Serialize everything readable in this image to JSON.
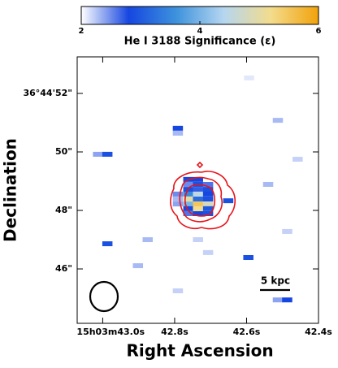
{
  "chart_data": {
    "type": "heatmap",
    "colorbar_label": "He I 3188 Significance (ε)",
    "clim": [
      2,
      6
    ],
    "cticks": [
      2,
      4,
      6
    ],
    "colormap": [
      "#ffffff",
      "#1646e0",
      "#3d92dc",
      "#b5d6f0",
      "#f3dc8c",
      "#f2a20a"
    ],
    "xlabel": "Right Ascension",
    "ylabel": "Declination",
    "xlim": [
      43.071,
      42.4
    ],
    "ylim": [
      44.14,
      53.25
    ],
    "xticks": [
      {
        "value": 43.0,
        "label": "15h03m43.0s"
      },
      {
        "value": 42.8,
        "label": "42.8s"
      },
      {
        "value": 42.6,
        "label": "42.6s"
      },
      {
        "value": 42.4,
        "label": "42.4s"
      }
    ],
    "yticks": [
      {
        "value": 52,
        "label": "36°44'52\""
      },
      {
        "value": 50,
        "label": "50\""
      },
      {
        "value": 48,
        "label": "48\""
      },
      {
        "value": 46,
        "label": "46\""
      }
    ],
    "scale_label": "5 kpc",
    "x": [
      42.593,
      42.791,
      42.791,
      43.013,
      42.987,
      42.513,
      42.458,
      42.54,
      42.987,
      42.875,
      42.902,
      42.735,
      42.707,
      42.595,
      42.487,
      42.791,
      42.513,
      42.487,
      42.651,
      42.762,
      42.735,
      42.762,
      42.735,
      42.707,
      42.762,
      42.735,
      42.707,
      42.791,
      42.762,
      42.735,
      42.707,
      42.791,
      42.762,
      42.735,
      42.707,
      42.791,
      42.762,
      42.735,
      42.707,
      42.762,
      42.735,
      42.707,
      42.762,
      42.735,
      42.707
    ],
    "y": [
      52.53,
      50.81,
      50.64,
      49.92,
      49.92,
      51.08,
      49.75,
      48.89,
      46.86,
      47.0,
      46.11,
      47.0,
      46.56,
      46.39,
      47.28,
      45.25,
      44.94,
      44.94,
      48.33,
      49.06,
      49.06,
      48.89,
      48.89,
      48.89,
      48.72,
      48.72,
      48.72,
      48.56,
      48.56,
      48.56,
      48.56,
      48.39,
      48.39,
      48.39,
      48.39,
      48.22,
      48.22,
      48.22,
      48.22,
      48.06,
      48.06,
      48.06,
      47.89,
      47.89,
      47.89
    ],
    "values": [
      2.1,
      2.8,
      2.3,
      2.4,
      2.9,
      2.3,
      2.2,
      2.3,
      2.9,
      2.3,
      2.3,
      2.2,
      2.2,
      2.9,
      2.2,
      2.2,
      2.4,
      2.8,
      2.9,
      2.8,
      2.8,
      2.5,
      2.9,
      2.6,
      2.9,
      2.7,
      2.9,
      2.5,
      3.5,
      4.5,
      2.8,
      2.3,
      5.0,
      3.2,
      2.9,
      2.4,
      4.0,
      5.5,
      4.8,
      2.8,
      5.2,
      3.0,
      2.6,
      2.8,
      2.9
    ]
  }
}
